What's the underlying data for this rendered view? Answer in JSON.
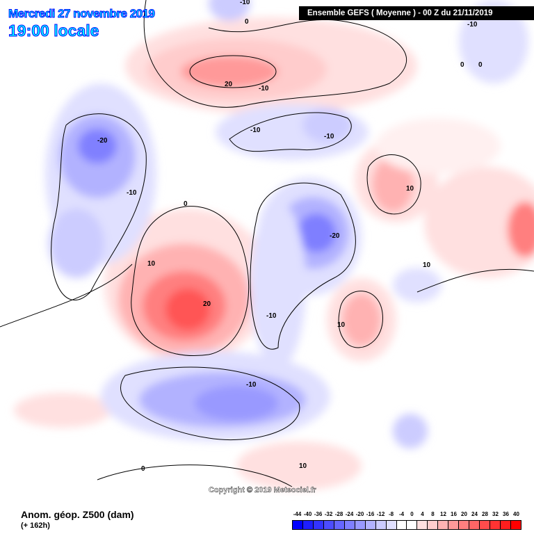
{
  "header": {
    "date": "Mercredi 27 novembre 2019",
    "time": "19:00 locale",
    "run": "Ensemble GEFS  ( Moyenne )  -  00 Z du 21/11/2019"
  },
  "footer": {
    "parameter": "Anom. géop. Z500 (dam)",
    "lead": "(+ 162h)",
    "copyright": "Copyright © 2019 Meteociel.fr"
  },
  "legend": {
    "labels": [
      "-44",
      "-40",
      "-36",
      "-32",
      "-28",
      "-24",
      "-20",
      "-16",
      "-12",
      "-8",
      "-4",
      "0",
      "4",
      "8",
      "12",
      "16",
      "20",
      "24",
      "28",
      "32",
      "36",
      "40"
    ],
    "colors": [
      "#0000ff",
      "#1e1eff",
      "#3333ff",
      "#4c4cff",
      "#6666ff",
      "#7f7fff",
      "#9999ff",
      "#b2b2ff",
      "#ccccff",
      "#e0e0ff",
      "#ffffff",
      "#ffffff",
      "#ffe0e0",
      "#ffcccc",
      "#ffb2b2",
      "#ff9999",
      "#ff7f7f",
      "#ff6666",
      "#ff4c4c",
      "#ff3333",
      "#ff1e1e",
      "#ff0000"
    ]
  },
  "contour_labels": [
    "-10",
    "0",
    "-10",
    "20",
    "-10",
    "0",
    "0",
    "-20",
    "-10",
    "-10",
    "-10",
    "10",
    "0",
    "10",
    "-20",
    "-10",
    "20",
    "10",
    "-10",
    "10",
    "0",
    "10"
  ]
}
